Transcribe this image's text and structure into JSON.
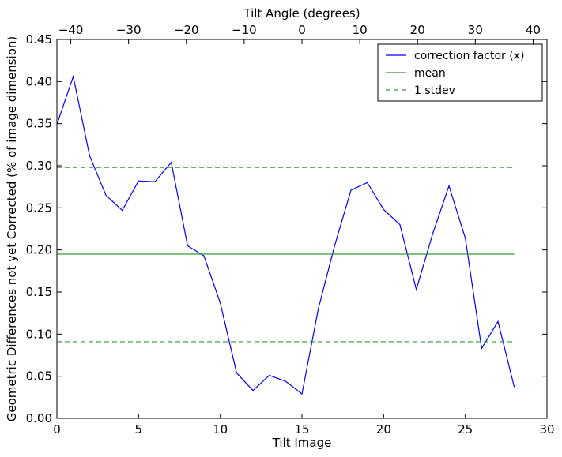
{
  "chart_data": {
    "type": "line",
    "title": "",
    "xlabel": "Tilt Image",
    "ylabel": "Geometric Differences not yet Corrected (% of image dimension)",
    "x2label": "Tilt Angle (degrees)",
    "xlim": [
      0,
      30
    ],
    "ylim": [
      0,
      0.45
    ],
    "x2lim": [
      -42.4,
      42.4
    ],
    "xticks": [
      "0",
      "5",
      "10",
      "15",
      "20",
      "25",
      "30"
    ],
    "yticks": [
      "0.00",
      "0.05",
      "0.10",
      "0.15",
      "0.20",
      "0.25",
      "0.30",
      "0.35",
      "0.40",
      "0.45"
    ],
    "x2ticks": [
      "−40",
      "−30",
      "−20",
      "−10",
      "0",
      "10",
      "20",
      "30",
      "40"
    ],
    "grid": false,
    "legend_position": "top-right",
    "series": [
      {
        "name": "correction factor (x)",
        "color": "#0000ff",
        "style": "solid",
        "x": [
          0,
          1,
          2,
          3,
          4,
          5,
          6,
          7,
          8,
          9,
          10,
          11,
          12,
          13,
          14,
          15,
          16,
          17,
          18,
          19,
          20,
          21,
          22,
          23,
          24,
          25,
          26,
          27,
          28
        ],
        "y": [
          0.349,
          0.406,
          0.312,
          0.265,
          0.247,
          0.282,
          0.281,
          0.304,
          0.205,
          0.193,
          0.137,
          0.054,
          0.033,
          0.051,
          0.044,
          0.029,
          0.13,
          0.205,
          0.271,
          0.28,
          0.248,
          0.23,
          0.153,
          0.219,
          0.276,
          0.214,
          0.083,
          0.115,
          0.037
        ]
      },
      {
        "name": "mean",
        "color": "#339933",
        "style": "solid",
        "x": [
          0,
          28
        ],
        "y": [
          0.195,
          0.195
        ]
      },
      {
        "name": "1 stdev",
        "color": "#339933",
        "style": "dashed",
        "x": [
          0,
          28
        ],
        "y": [
          0.298,
          0.298
        ],
        "x_lower": [
          0,
          28
        ],
        "y_lower": [
          0.091,
          0.091
        ]
      }
    ]
  }
}
